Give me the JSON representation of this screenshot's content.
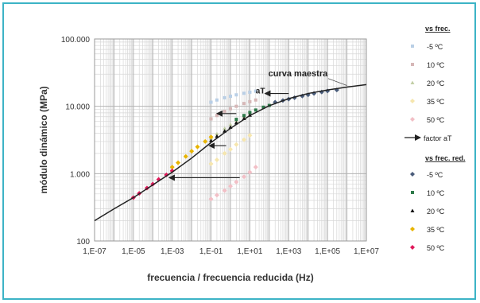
{
  "chart_data": {
    "type": "scatter",
    "title": "",
    "xlabel": "frecuencia / frecuencia reducida  (Hz)",
    "ylabel": "módulo dinámico  (MPa)",
    "x_scale": "log",
    "y_scale": "log",
    "xlim": [
      1e-07,
      10000000.0
    ],
    "ylim": [
      100,
      100000
    ],
    "x_ticks": [
      1e-07,
      1e-05,
      0.001,
      0.1,
      10.0,
      1000.0,
      100000.0,
      10000000.0
    ],
    "x_tick_labels": [
      "1,E-07",
      "1,E-05",
      "1,E-03",
      "1,E-01",
      "1,E+01",
      "1,E+03",
      "1,E+05",
      "1,E+07"
    ],
    "y_ticks": [
      100,
      1000,
      10000,
      100000
    ],
    "y_tick_labels": [
      "100",
      "1.000",
      "10.000",
      "100.000"
    ],
    "grid": true,
    "legend_position": "right",
    "legend_group_titles": [
      "vs frec.",
      "vs frec. red."
    ],
    "annotations": [
      {
        "text": "curva maestra",
        "x": 3000,
        "y": 28000
      },
      {
        "text": "aT",
        "x": 20,
        "y": 15500
      }
    ],
    "master_curve": {
      "name": "curva maestra",
      "color": "#222222",
      "x": [
        1e-07,
        1e-06,
        1e-05,
        0.0001,
        0.001,
        0.01,
        0.1,
        1,
        10,
        100,
        1000,
        10000.0,
        100000.0,
        1000000.0,
        10000000.0
      ],
      "y": [
        200,
        300,
        440,
        680,
        1050,
        1700,
        2900,
        4700,
        7300,
        10200,
        13000,
        15500,
        17500,
        19300,
        21000
      ]
    },
    "aT_arrows": [
      {
        "from": [
          1000,
          15500
        ],
        "to": [
          60,
          15500
        ]
      },
      {
        "from": [
          2,
          7800
        ],
        "to": [
          0.2,
          7800
        ]
      },
      {
        "from": [
          0.6,
          2600
        ],
        "to": [
          0.08,
          2600
        ]
      },
      {
        "from": [
          3,
          870
        ],
        "to": [
          0.0007,
          870
        ]
      }
    ],
    "series": [
      {
        "name": "-5 ºC",
        "group": "vs frec.",
        "color": "#b9cfe6",
        "marker": "square",
        "x": [
          0.1,
          0.2,
          0.5,
          1,
          2,
          5,
          10,
          20
        ],
        "y": [
          11500,
          12400,
          13400,
          14100,
          14800,
          15600,
          16200,
          16800
        ]
      },
      {
        "name": "10 ºC",
        "group": "vs frec.",
        "color": "#d6b7b7",
        "marker": "square",
        "x": [
          0.1,
          0.2,
          0.5,
          1,
          2,
          5,
          10,
          20
        ],
        "y": [
          6500,
          7300,
          8400,
          9200,
          10000,
          11000,
          11700,
          12400
        ]
      },
      {
        "name": "20 ºC",
        "group": "vs frec.",
        "color": "#c2cfa6",
        "marker": "triangle",
        "x": [
          0.1,
          0.2,
          0.5,
          1,
          2,
          5,
          10
        ],
        "y": [
          3400,
          3900,
          4700,
          5400,
          6100,
          7100,
          7900
        ]
      },
      {
        "name": "35 ºC",
        "group": "vs frec.",
        "color": "#f6e6ae",
        "marker": "diamond",
        "x": [
          0.1,
          0.2,
          0.5,
          1,
          2,
          5,
          10
        ],
        "y": [
          1400,
          1600,
          2000,
          2300,
          2700,
          3200,
          3700
        ]
      },
      {
        "name": "50 ºC",
        "group": "vs frec.",
        "color": "#f2bfc6",
        "marker": "diamond",
        "x": [
          0.1,
          0.2,
          0.5,
          1,
          2,
          5,
          10,
          20
        ],
        "y": [
          420,
          480,
          560,
          650,
          750,
          900,
          1050,
          1250
        ]
      },
      {
        "name": "-5 ºC",
        "group": "vs frec. red.",
        "color": "#4a5c7a",
        "marker": "diamond",
        "x": [
          200,
          500,
          1000,
          2000,
          5000,
          10000,
          20000,
          50000,
          100000,
          300000
        ],
        "y": [
          11500,
          12200,
          12800,
          13400,
          14200,
          14800,
          15500,
          16300,
          16900,
          17500
        ]
      },
      {
        "name": "10 ºC",
        "group": "vs frec. red.",
        "color": "#2e7a4a",
        "marker": "square",
        "x": [
          2,
          5,
          10,
          20,
          50,
          100
        ],
        "y": [
          6400,
          7300,
          8100,
          8800,
          9700,
          10300
        ]
      },
      {
        "name": "20 ºC",
        "group": "vs frec. red.",
        "color": "#111111",
        "marker": "triangle",
        "x": [
          0.1,
          0.2,
          0.5,
          1,
          2,
          5,
          10
        ],
        "y": [
          3100,
          3600,
          4300,
          4900,
          5700,
          6600,
          7400
        ]
      },
      {
        "name": "35 ºC",
        "group": "vs frec. red.",
        "color": "#e8b400",
        "marker": "diamond",
        "x": [
          0.001,
          0.002,
          0.005,
          0.01,
          0.02,
          0.05,
          0.1
        ],
        "y": [
          1250,
          1450,
          1800,
          2150,
          2500,
          3000,
          3500
        ]
      },
      {
        "name": "50 ºC",
        "group": "vs frec. red.",
        "color": "#e0185a",
        "marker": "diamond",
        "x": [
          1e-05,
          2e-05,
          5e-05,
          0.0001,
          0.0002,
          0.0005,
          0.001
        ],
        "y": [
          440,
          510,
          610,
          700,
          820,
          960,
          1100
        ]
      }
    ],
    "legend_items": [
      {
        "type": "title",
        "text": "vs frec."
      },
      {
        "type": "series",
        "series_index": 0
      },
      {
        "type": "series",
        "series_index": 1
      },
      {
        "type": "series",
        "series_index": 2
      },
      {
        "type": "series",
        "series_index": 3
      },
      {
        "type": "series",
        "series_index": 4
      },
      {
        "type": "arrow",
        "text": "factor aT"
      },
      {
        "type": "title",
        "text": "vs frec. red."
      },
      {
        "type": "series",
        "series_index": 5
      },
      {
        "type": "series",
        "series_index": 6
      },
      {
        "type": "series",
        "series_index": 7
      },
      {
        "type": "series",
        "series_index": 8
      },
      {
        "type": "series",
        "series_index": 9
      }
    ]
  }
}
